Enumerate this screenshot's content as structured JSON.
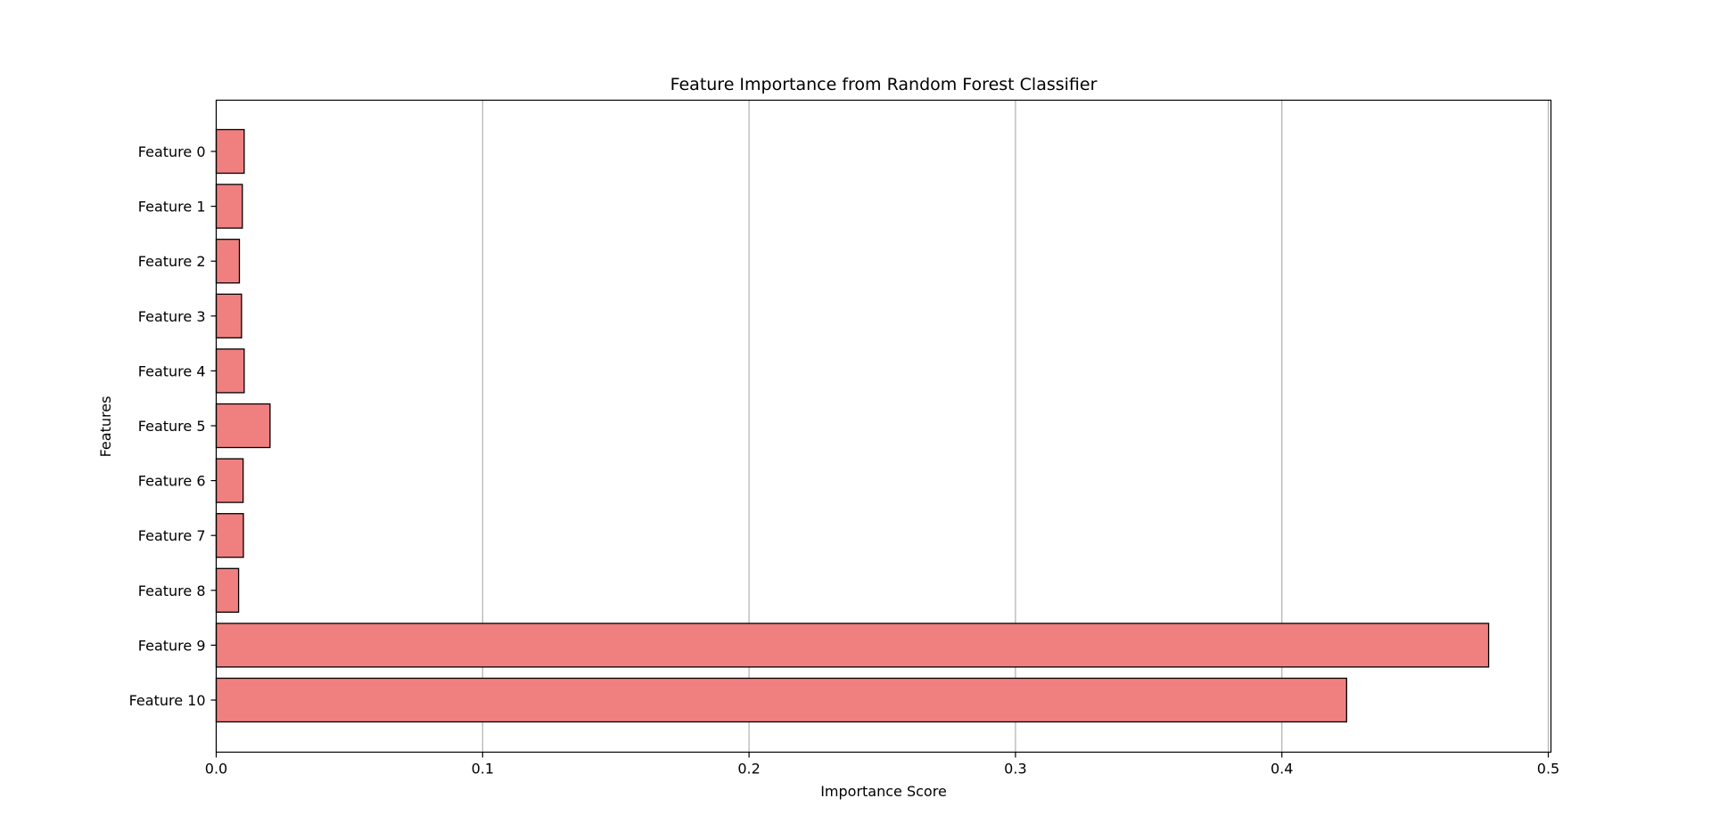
{
  "chart_data": {
    "type": "bar",
    "orientation": "horizontal",
    "title": "Feature Importance from Random Forest Classifier",
    "xlabel": "Importance Score",
    "ylabel": "Features",
    "categories": [
      "Feature 0",
      "Feature 1",
      "Feature 2",
      "Feature 3",
      "Feature 4",
      "Feature 5",
      "Feature 6",
      "Feature 7",
      "Feature 8",
      "Feature 9",
      "Feature 10"
    ],
    "values": [
      0.0105,
      0.0098,
      0.0087,
      0.0095,
      0.0105,
      0.0202,
      0.0101,
      0.0102,
      0.0084,
      0.4776,
      0.4243
    ],
    "xlim": [
      0.0,
      0.501
    ],
    "xticks": [
      0.0,
      0.1,
      0.2,
      0.3,
      0.4,
      0.5
    ],
    "xtick_labels": [
      "0.0",
      "0.1",
      "0.2",
      "0.3",
      "0.4",
      "0.5"
    ],
    "grid": "x-axis vertical lines",
    "legend": "none",
    "bar_color": "#f08080",
    "bar_edge_color": "#000000",
    "grid_color": "#b0b0b0"
  }
}
